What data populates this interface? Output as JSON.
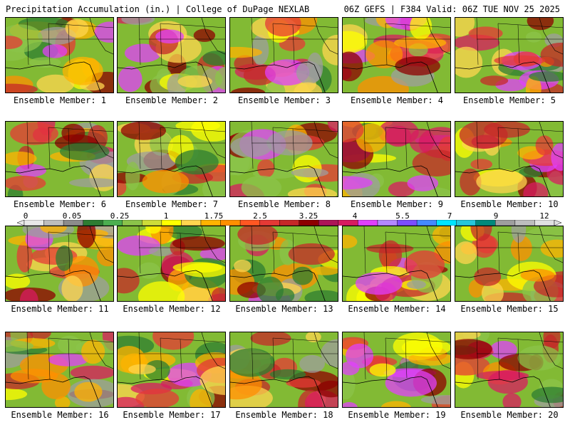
{
  "header": {
    "left": "Precipitation Accumulation (in.) | College of DuPage NEXLAB",
    "right": "06Z GEFS | F384 Valid: 06Z TUE NOV 25 2025"
  },
  "members": [
    {
      "label": "Ensemble Member: 1"
    },
    {
      "label": "Ensemble Member: 2"
    },
    {
      "label": "Ensemble Member: 3"
    },
    {
      "label": "Ensemble Member: 4"
    },
    {
      "label": "Ensemble Member: 5"
    },
    {
      "label": "Ensemble Member: 6"
    },
    {
      "label": "Ensemble Member: 7"
    },
    {
      "label": "Ensemble Member: 8"
    },
    {
      "label": "Ensemble Member: 9"
    },
    {
      "label": "Ensemble Member: 10"
    },
    {
      "label": "Ensemble Member: 11"
    },
    {
      "label": "Ensemble Member: 12"
    },
    {
      "label": "Ensemble Member: 13"
    },
    {
      "label": "Ensemble Member: 14"
    },
    {
      "label": "Ensemble Member: 15"
    },
    {
      "label": "Ensemble Member: 16"
    },
    {
      "label": "Ensemble Member: 17"
    },
    {
      "label": "Ensemble Member: 18"
    },
    {
      "label": "Ensemble Member: 19"
    },
    {
      "label": "Ensemble Member: 20"
    }
  ],
  "colorbar": {
    "ticks": [
      "0",
      "0.05",
      "0.25",
      "1",
      "1.75",
      "2.5",
      "3.25",
      "4",
      "5.5",
      "7",
      "9",
      "12"
    ],
    "colors": [
      "#e8e8e8",
      "#bdbdbd",
      "#8c8c8c",
      "#2e7d32",
      "#4caf50",
      "#8bc34a",
      "#cddc39",
      "#ffff00",
      "#ffd54f",
      "#ffb300",
      "#ff8f00",
      "#ff5722",
      "#e53935",
      "#c62828",
      "#8e0000",
      "#ad1457",
      "#d81b60",
      "#e040fb",
      "#b388ff",
      "#7c4dff",
      "#448aff",
      "#00e5ff",
      "#26c6da",
      "#00897b",
      "#9e9e9e",
      "#bdbdbd",
      "#e0e0e0"
    ]
  }
}
